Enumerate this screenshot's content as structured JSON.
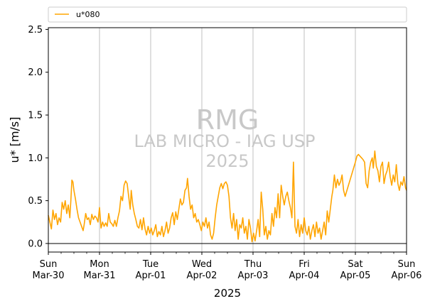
{
  "chart_data": {
    "type": "line",
    "legend": {
      "placement": "top-left, above plot",
      "entries": [
        "u*080"
      ]
    },
    "watermark": [
      "RMG",
      "LAB MICRO - IAG USP",
      "2025"
    ],
    "xlabel": "2025",
    "ylabel": "u* [m/s]",
    "ylim": [
      -0.1,
      2.52
    ],
    "yticks": [
      0.0,
      0.5,
      1.0,
      1.5,
      2.0,
      2.5
    ],
    "ytick_labels": [
      "0.0",
      "0.5",
      "1.0",
      "1.5",
      "2.0",
      "2.5"
    ],
    "xlim_days": [
      0,
      7
    ],
    "xticks": [
      {
        "day": 0,
        "dow": "Sun",
        "date": "Mar-30"
      },
      {
        "day": 1,
        "dow": "Mon",
        "date": "Mar-31"
      },
      {
        "day": 2,
        "dow": "Tue",
        "date": "Apr-01"
      },
      {
        "day": 3,
        "dow": "Wed",
        "date": "Apr-02"
      },
      {
        "day": 4,
        "dow": "Thu",
        "date": "Apr-03"
      },
      {
        "day": 5,
        "dow": "Fri",
        "date": "Apr-04"
      },
      {
        "day": 6,
        "dow": "Sat",
        "date": "Apr-05"
      },
      {
        "day": 7,
        "dow": "Sun",
        "date": "Apr-06"
      }
    ],
    "grid": "vertical major lines",
    "reference_line_y": 0.0,
    "series": [
      {
        "name": "u*080",
        "color": "#FFA500",
        "points": [
          [
            0.0,
            0.33
          ],
          [
            0.03,
            0.25
          ],
          [
            0.06,
            0.17
          ],
          [
            0.09,
            0.39
          ],
          [
            0.12,
            0.28
          ],
          [
            0.15,
            0.35
          ],
          [
            0.18,
            0.22
          ],
          [
            0.21,
            0.3
          ],
          [
            0.24,
            0.25
          ],
          [
            0.27,
            0.48
          ],
          [
            0.3,
            0.4
          ],
          [
            0.33,
            0.5
          ],
          [
            0.36,
            0.35
          ],
          [
            0.39,
            0.45
          ],
          [
            0.42,
            0.3
          ],
          [
            0.44,
            0.5
          ],
          [
            0.46,
            0.74
          ],
          [
            0.48,
            0.72
          ],
          [
            0.5,
            0.62
          ],
          [
            0.53,
            0.52
          ],
          [
            0.56,
            0.4
          ],
          [
            0.59,
            0.3
          ],
          [
            0.62,
            0.25
          ],
          [
            0.65,
            0.2
          ],
          [
            0.68,
            0.15
          ],
          [
            0.7,
            0.22
          ],
          [
            0.73,
            0.35
          ],
          [
            0.76,
            0.28
          ],
          [
            0.79,
            0.3
          ],
          [
            0.82,
            0.22
          ],
          [
            0.85,
            0.34
          ],
          [
            0.88,
            0.28
          ],
          [
            0.91,
            0.32
          ],
          [
            0.94,
            0.3
          ],
          [
            0.97,
            0.25
          ],
          [
            1.0,
            0.42
          ],
          [
            1.03,
            0.18
          ],
          [
            1.06,
            0.25
          ],
          [
            1.09,
            0.2
          ],
          [
            1.12,
            0.24
          ],
          [
            1.15,
            0.2
          ],
          [
            1.18,
            0.35
          ],
          [
            1.21,
            0.25
          ],
          [
            1.24,
            0.23
          ],
          [
            1.27,
            0.2
          ],
          [
            1.3,
            0.27
          ],
          [
            1.33,
            0.2
          ],
          [
            1.36,
            0.3
          ],
          [
            1.39,
            0.38
          ],
          [
            1.42,
            0.55
          ],
          [
            1.45,
            0.5
          ],
          [
            1.48,
            0.68
          ],
          [
            1.51,
            0.73
          ],
          [
            1.54,
            0.7
          ],
          [
            1.57,
            0.55
          ],
          [
            1.6,
            0.4
          ],
          [
            1.62,
            0.62
          ],
          [
            1.65,
            0.45
          ],
          [
            1.68,
            0.35
          ],
          [
            1.71,
            0.28
          ],
          [
            1.74,
            0.2
          ],
          [
            1.77,
            0.18
          ],
          [
            1.8,
            0.28
          ],
          [
            1.83,
            0.16
          ],
          [
            1.86,
            0.3
          ],
          [
            1.89,
            0.17
          ],
          [
            1.92,
            0.1
          ],
          [
            1.95,
            0.2
          ],
          [
            1.98,
            0.12
          ],
          [
            2.01,
            0.18
          ],
          [
            2.04,
            0.1
          ],
          [
            2.07,
            0.15
          ],
          [
            2.1,
            0.22
          ],
          [
            2.13,
            0.08
          ],
          [
            2.16,
            0.14
          ],
          [
            2.19,
            0.1
          ],
          [
            2.22,
            0.2
          ],
          [
            2.25,
            0.08
          ],
          [
            2.28,
            0.15
          ],
          [
            2.31,
            0.25
          ],
          [
            2.34,
            0.12
          ],
          [
            2.37,
            0.18
          ],
          [
            2.4,
            0.3
          ],
          [
            2.43,
            0.36
          ],
          [
            2.46,
            0.22
          ],
          [
            2.49,
            0.37
          ],
          [
            2.52,
            0.28
          ],
          [
            2.55,
            0.4
          ],
          [
            2.58,
            0.52
          ],
          [
            2.61,
            0.45
          ],
          [
            2.64,
            0.48
          ],
          [
            2.67,
            0.62
          ],
          [
            2.7,
            0.65
          ],
          [
            2.72,
            0.76
          ],
          [
            2.75,
            0.55
          ],
          [
            2.78,
            0.4
          ],
          [
            2.81,
            0.45
          ],
          [
            2.84,
            0.3
          ],
          [
            2.87,
            0.35
          ],
          [
            2.9,
            0.25
          ],
          [
            2.93,
            0.28
          ],
          [
            2.96,
            0.22
          ],
          [
            2.99,
            0.15
          ],
          [
            3.02,
            0.25
          ],
          [
            3.05,
            0.2
          ],
          [
            3.08,
            0.3
          ],
          [
            3.11,
            0.18
          ],
          [
            3.14,
            0.25
          ],
          [
            3.17,
            0.1
          ],
          [
            3.2,
            0.05
          ],
          [
            3.23,
            0.12
          ],
          [
            3.26,
            0.3
          ],
          [
            3.29,
            0.45
          ],
          [
            3.32,
            0.55
          ],
          [
            3.35,
            0.65
          ],
          [
            3.38,
            0.7
          ],
          [
            3.41,
            0.64
          ],
          [
            3.44,
            0.7
          ],
          [
            3.47,
            0.72
          ],
          [
            3.5,
            0.68
          ],
          [
            3.53,
            0.55
          ],
          [
            3.56,
            0.3
          ],
          [
            3.59,
            0.18
          ],
          [
            3.62,
            0.35
          ],
          [
            3.65,
            0.15
          ],
          [
            3.68,
            0.28
          ],
          [
            3.71,
            0.05
          ],
          [
            3.74,
            0.22
          ],
          [
            3.77,
            0.18
          ],
          [
            3.8,
            0.3
          ],
          [
            3.83,
            0.12
          ],
          [
            3.86,
            0.2
          ],
          [
            3.89,
            0.05
          ],
          [
            3.92,
            0.28
          ],
          [
            3.95,
            0.18
          ],
          [
            3.98,
            0.02
          ],
          [
            4.01,
            0.12
          ],
          [
            4.04,
            0.03
          ],
          [
            4.07,
            0.15
          ],
          [
            4.1,
            0.28
          ],
          [
            4.13,
            0.08
          ],
          [
            4.16,
            0.6
          ],
          [
            4.19,
            0.4
          ],
          [
            4.22,
            0.1
          ],
          [
            4.25,
            0.2
          ],
          [
            4.28,
            0.05
          ],
          [
            4.31,
            0.15
          ],
          [
            4.34,
            0.1
          ],
          [
            4.37,
            0.35
          ],
          [
            4.4,
            0.2
          ],
          [
            4.43,
            0.42
          ],
          [
            4.46,
            0.3
          ],
          [
            4.49,
            0.58
          ],
          [
            4.52,
            0.3
          ],
          [
            4.55,
            0.68
          ],
          [
            4.58,
            0.55
          ],
          [
            4.61,
            0.45
          ],
          [
            4.64,
            0.55
          ],
          [
            4.67,
            0.6
          ],
          [
            4.7,
            0.5
          ],
          [
            4.73,
            0.42
          ],
          [
            4.76,
            0.3
          ],
          [
            4.79,
            0.95
          ],
          [
            4.82,
            0.2
          ],
          [
            4.85,
            0.12
          ],
          [
            4.88,
            0.28
          ],
          [
            4.91,
            0.08
          ],
          [
            4.94,
            0.22
          ],
          [
            4.97,
            0.12
          ],
          [
            5.0,
            0.3
          ],
          [
            5.03,
            0.15
          ],
          [
            5.06,
            0.1
          ],
          [
            5.09,
            0.2
          ],
          [
            5.12,
            0.05
          ],
          [
            5.15,
            0.15
          ],
          [
            5.18,
            0.22
          ],
          [
            5.21,
            0.08
          ],
          [
            5.24,
            0.25
          ],
          [
            5.27,
            0.12
          ],
          [
            5.3,
            0.18
          ],
          [
            5.33,
            0.05
          ],
          [
            5.36,
            0.15
          ],
          [
            5.39,
            0.25
          ],
          [
            5.42,
            0.1
          ],
          [
            5.45,
            0.38
          ],
          [
            5.48,
            0.25
          ],
          [
            5.51,
            0.4
          ],
          [
            5.54,
            0.55
          ],
          [
            5.56,
            0.62
          ],
          [
            5.59,
            0.8
          ],
          [
            5.62,
            0.65
          ],
          [
            5.65,
            0.75
          ],
          [
            5.68,
            0.68
          ],
          [
            5.71,
            0.72
          ],
          [
            5.74,
            0.8
          ],
          [
            5.77,
            0.62
          ],
          [
            5.8,
            0.55
          ],
          [
            5.85,
            0.65
          ],
          [
            5.9,
            0.75
          ],
          [
            5.95,
            0.85
          ],
          [
            6.0,
            0.95
          ],
          [
            6.03,
            1.02
          ],
          [
            6.06,
            1.04
          ],
          [
            6.09,
            1.02
          ],
          [
            6.12,
            1.0
          ],
          [
            6.15,
            0.98
          ],
          [
            6.18,
            0.95
          ],
          [
            6.21,
            0.7
          ],
          [
            6.24,
            0.65
          ],
          [
            6.27,
            0.85
          ],
          [
            6.3,
            0.95
          ],
          [
            6.33,
            1.0
          ],
          [
            6.35,
            0.88
          ],
          [
            6.38,
            1.08
          ],
          [
            6.41,
            0.9
          ],
          [
            6.44,
            0.85
          ],
          [
            6.47,
            0.72
          ],
          [
            6.5,
            0.9
          ],
          [
            6.53,
            0.95
          ],
          [
            6.56,
            0.7
          ],
          [
            6.59,
            0.8
          ],
          [
            6.62,
            0.85
          ],
          [
            6.65,
            0.95
          ],
          [
            6.68,
            0.78
          ],
          [
            6.71,
            0.68
          ],
          [
            6.74,
            0.8
          ],
          [
            6.77,
            0.72
          ],
          [
            6.8,
            0.92
          ],
          [
            6.83,
            0.7
          ],
          [
            6.86,
            0.62
          ],
          [
            6.89,
            0.72
          ],
          [
            6.92,
            0.68
          ],
          [
            6.95,
            0.78
          ],
          [
            6.98,
            0.65
          ],
          [
            7.0,
            0.62
          ]
        ]
      }
    ]
  }
}
